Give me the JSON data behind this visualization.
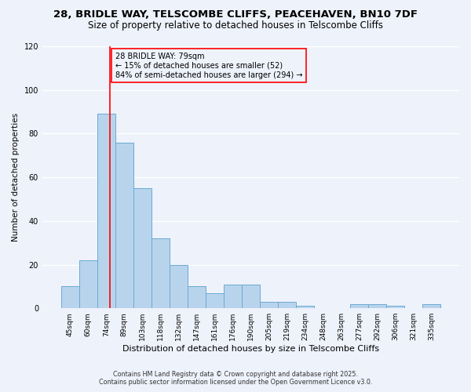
{
  "title1": "28, BRIDLE WAY, TELSCOMBE CLIFFS, PEACEHAVEN, BN10 7DF",
  "title2": "Size of property relative to detached houses in Telscombe Cliffs",
  "xlabel": "Distribution of detached houses by size in Telscombe Cliffs",
  "ylabel": "Number of detached properties",
  "categories": [
    "45sqm",
    "60sqm",
    "74sqm",
    "89sqm",
    "103sqm",
    "118sqm",
    "132sqm",
    "147sqm",
    "161sqm",
    "176sqm",
    "190sqm",
    "205sqm",
    "219sqm",
    "234sqm",
    "248sqm",
    "263sqm",
    "277sqm",
    "292sqm",
    "306sqm",
    "321sqm",
    "335sqm"
  ],
  "values": [
    10,
    22,
    89,
    76,
    55,
    32,
    20,
    10,
    7,
    11,
    11,
    3,
    3,
    1,
    0,
    0,
    2,
    2,
    1,
    0,
    2
  ],
  "ylim": [
    0,
    120
  ],
  "yticks": [
    0,
    20,
    40,
    60,
    80,
    100,
    120
  ],
  "bar_color": "#b8d4ec",
  "bar_edge_color": "#6aaad4",
  "vline_x": 2.2,
  "vline_color": "red",
  "annotation_title": "28 BRIDLE WAY: 79sqm",
  "annotation_line1": "← 15% of detached houses are smaller (52)",
  "annotation_line2": "84% of semi-detached houses are larger (294) →",
  "box_edge_color": "red",
  "footnote1": "Contains HM Land Registry data © Crown copyright and database right 2025.",
  "footnote2": "Contains public sector information licensed under the Open Government Licence v3.0.",
  "bg_color": "#eef2fb",
  "grid_color": "#ffffff",
  "title_fontsize": 9.5,
  "subtitle_fontsize": 8.5,
  "bar_width": 0.98
}
